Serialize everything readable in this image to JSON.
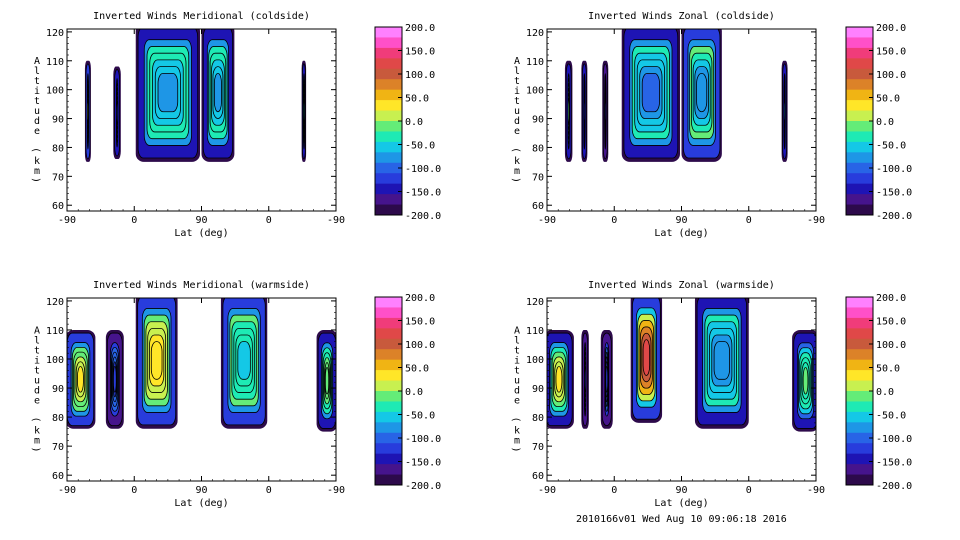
{
  "figure": {
    "footer": "2010166v01 Wed Aug 10 09:06:18 2016"
  },
  "colorbar": {
    "labels": [
      "200.0",
      "150.0",
      "100.0",
      "50.0",
      "0.0",
      "-50.0",
      "-100.0",
      "-150.0",
      "-200.0"
    ],
    "colors": [
      "#ff80ff",
      "#ff50c8",
      "#f03c7a",
      "#e04848",
      "#c85a3c",
      "#dc8228",
      "#f0b414",
      "#ffe628",
      "#c8f050",
      "#64ec78",
      "#1eeab4",
      "#14c8e6",
      "#1e96e6",
      "#2864e6",
      "#283cdc",
      "#1e14b4",
      "#46148c",
      "#2d0a4b"
    ]
  },
  "chart_data": [
    {
      "type": "heatmap",
      "title": "Inverted Winds Meridional (coldside)",
      "xlabel": "Lat (deg)",
      "ylabel": "Altitude (km)",
      "xticks": [
        "-90",
        "0",
        "90",
        "0",
        "-90"
      ],
      "yticks": [
        "60",
        "70",
        "80",
        "90",
        "100",
        "110",
        "120"
      ],
      "ylim": [
        58,
        121
      ],
      "colorbar_range": [
        -200,
        200
      ],
      "blobs": [
        {
          "x": [
            -66,
            -58
          ],
          "y": [
            75,
            110
          ],
          "base": -20,
          "core": 20
        },
        {
          "x": [
            -28,
            -18
          ],
          "y": [
            76,
            108
          ],
          "base": -90,
          "core": -130
        },
        {
          "x": [
            2,
            88
          ],
          "y": [
            75,
            123
          ],
          "base": -25,
          "core": -80
        },
        {
          "x": [
            90,
            134
          ],
          "y": [
            75,
            123
          ],
          "base": -30,
          "core": -80
        },
        {
          "x": [
            224,
            230
          ],
          "y": [
            75,
            110
          ],
          "base": -40,
          "core": -60
        }
      ]
    },
    {
      "type": "heatmap",
      "title": "Inverted Winds Zonal (coldside)",
      "xlabel": "Lat (deg)",
      "ylabel": "Altitude (km)",
      "xticks": [
        "-90",
        "0",
        "90",
        "0",
        "-90"
      ],
      "yticks": [
        "60",
        "70",
        "80",
        "90",
        "100",
        "110",
        "120"
      ],
      "ylim": [
        58,
        121
      ],
      "colorbar_range": [
        -200,
        200
      ],
      "blobs": [
        {
          "x": [
            -66,
            -56
          ],
          "y": [
            75,
            110
          ],
          "base": -30,
          "core": -10
        },
        {
          "x": [
            -44,
            -36
          ],
          "y": [
            75,
            110
          ],
          "base": -90,
          "core": -120
        },
        {
          "x": [
            -16,
            -8
          ],
          "y": [
            75,
            110
          ],
          "base": -100,
          "core": -140
        },
        {
          "x": [
            10,
            88
          ],
          "y": [
            75,
            123
          ],
          "base": -30,
          "core": -100
        },
        {
          "x": [
            90,
            144
          ],
          "y": [
            75,
            123
          ],
          "base": -20,
          "core": -90
        },
        {
          "x": [
            224,
            232
          ],
          "y": [
            75,
            110
          ],
          "base": -40,
          "core": -60
        }
      ]
    },
    {
      "type": "heatmap",
      "title": "Inverted Winds Meridional (warmside)",
      "xlabel": "Lat (deg)",
      "ylabel": "Altitude (km)",
      "xticks": [
        "-90",
        "0",
        "90",
        "0",
        "-90"
      ],
      "yticks": [
        "60",
        "70",
        "80",
        "90",
        "100",
        "110",
        "120"
      ],
      "ylim": [
        58,
        121
      ],
      "colorbar_range": [
        -200,
        200
      ],
      "blobs": [
        {
          "x": [
            -92,
            -52
          ],
          "y": [
            76,
            110
          ],
          "base": -20,
          "core": 30
        },
        {
          "x": [
            -38,
            -14
          ],
          "y": [
            76,
            110
          ],
          "base": -100,
          "core": -130
        },
        {
          "x": [
            2,
            58
          ],
          "y": [
            76,
            123
          ],
          "base": -10,
          "core": 40
        },
        {
          "x": [
            116,
            178
          ],
          "y": [
            76,
            123
          ],
          "base": -20,
          "core": -50
        },
        {
          "x": [
            244,
            272
          ],
          "y": [
            75,
            110
          ],
          "base": -40,
          "core": 0
        }
      ]
    },
    {
      "type": "heatmap",
      "title": "Inverted Winds Zonal (warmside)",
      "xlabel": "Lat (deg)",
      "ylabel": "Altitude (km)",
      "xticks": [
        "-90",
        "0",
        "90",
        "0",
        "-90"
      ],
      "yticks": [
        "60",
        "70",
        "80",
        "90",
        "100",
        "110",
        "120"
      ],
      "ylim": [
        58,
        121
      ],
      "colorbar_range": [
        -200,
        200
      ],
      "blobs": [
        {
          "x": [
            -94,
            -54
          ],
          "y": [
            76,
            110
          ],
          "base": -30,
          "core": 40
        },
        {
          "x": [
            -44,
            -34
          ],
          "y": [
            76,
            110
          ],
          "base": -100,
          "core": -130
        },
        {
          "x": [
            -18,
            -2
          ],
          "y": [
            76,
            110
          ],
          "base": -100,
          "core": -140
        },
        {
          "x": [
            22,
            64
          ],
          "y": [
            78,
            123
          ],
          "base": 20,
          "core": 130
        },
        {
          "x": [
            108,
            180
          ],
          "y": [
            76,
            123
          ],
          "base": -40,
          "core": -90
        },
        {
          "x": [
            238,
            274
          ],
          "y": [
            75,
            110
          ],
          "base": -50,
          "core": -20
        }
      ]
    }
  ]
}
